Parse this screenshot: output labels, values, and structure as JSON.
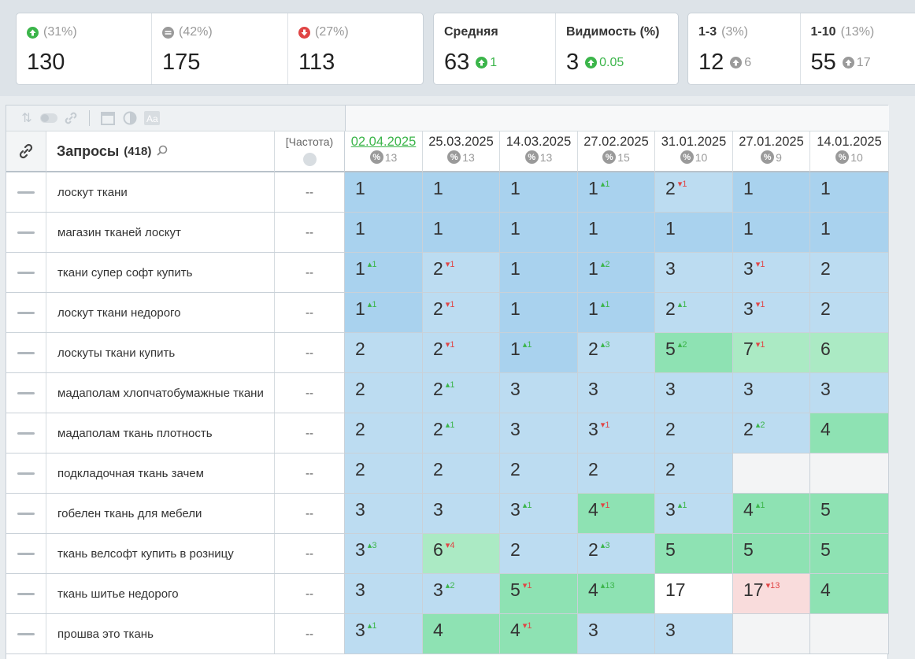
{
  "stats": {
    "card1": [
      {
        "icon": "up-green",
        "percent": "(31%)",
        "value": "130"
      },
      {
        "icon": "equal",
        "percent": "(42%)",
        "value": "175"
      },
      {
        "icon": "down-red",
        "percent": "(27%)",
        "value": "113"
      }
    ],
    "card2": [
      {
        "label": "Средняя",
        "value": "63",
        "delta": "1"
      },
      {
        "label": "Видимость (%)",
        "value": "3",
        "delta": "0.05"
      }
    ],
    "card3": [
      {
        "label": "1-3",
        "percent": "(3%)",
        "value": "12",
        "delta": "6"
      },
      {
        "label": "1-10",
        "percent": "(13%)",
        "value": "55",
        "delta": "17"
      }
    ]
  },
  "table": {
    "header": {
      "queries_label": "Запросы",
      "queries_count": "(418)",
      "frequency_label": "[Частота)"
    },
    "dates": [
      {
        "date": "02.04.2025",
        "pct": "13",
        "active": true
      },
      {
        "date": "25.03.2025",
        "pct": "13"
      },
      {
        "date": "14.03.2025",
        "pct": "13"
      },
      {
        "date": "27.02.2025",
        "pct": "15"
      },
      {
        "date": "31.01.2025",
        "pct": "10"
      },
      {
        "date": "27.01.2025",
        "pct": "9"
      },
      {
        "date": "14.01.2025",
        "pct": "10"
      }
    ],
    "rows": [
      {
        "query": "лоскут ткани",
        "freq": "--",
        "cells": [
          {
            "v": "1",
            "bg": "b1"
          },
          {
            "v": "1",
            "bg": "b1"
          },
          {
            "v": "1",
            "bg": "b1"
          },
          {
            "v": "1",
            "ch": "1",
            "dir": "up",
            "bg": "b1"
          },
          {
            "v": "2",
            "ch": "1",
            "dir": "down",
            "bg": "b2"
          },
          {
            "v": "1",
            "bg": "b1"
          },
          {
            "v": "1",
            "bg": "b1"
          }
        ]
      },
      {
        "query": "магазин тканей лоскут",
        "freq": "--",
        "cells": [
          {
            "v": "1",
            "bg": "b1"
          },
          {
            "v": "1",
            "bg": "b1"
          },
          {
            "v": "1",
            "bg": "b1"
          },
          {
            "v": "1",
            "bg": "b1"
          },
          {
            "v": "1",
            "bg": "b1"
          },
          {
            "v": "1",
            "bg": "b1"
          },
          {
            "v": "1",
            "bg": "b1"
          }
        ]
      },
      {
        "query": "ткани супер софт купить",
        "freq": "--",
        "cells": [
          {
            "v": "1",
            "ch": "1",
            "dir": "up",
            "bg": "b1"
          },
          {
            "v": "2",
            "ch": "1",
            "dir": "down",
            "bg": "b2"
          },
          {
            "v": "1",
            "bg": "b1"
          },
          {
            "v": "1",
            "ch": "2",
            "dir": "up",
            "bg": "b1"
          },
          {
            "v": "3",
            "bg": "b2"
          },
          {
            "v": "3",
            "ch": "1",
            "dir": "down",
            "bg": "b2"
          },
          {
            "v": "2",
            "bg": "b2"
          }
        ]
      },
      {
        "query": "лоскут ткани недорого",
        "freq": "--",
        "cells": [
          {
            "v": "1",
            "ch": "1",
            "dir": "up",
            "bg": "b1"
          },
          {
            "v": "2",
            "ch": "1",
            "dir": "down",
            "bg": "b2"
          },
          {
            "v": "1",
            "bg": "b1"
          },
          {
            "v": "1",
            "ch": "1",
            "dir": "up",
            "bg": "b1"
          },
          {
            "v": "2",
            "ch": "1",
            "dir": "up",
            "bg": "b2"
          },
          {
            "v": "3",
            "ch": "1",
            "dir": "down",
            "bg": "b2"
          },
          {
            "v": "2",
            "bg": "b2"
          }
        ]
      },
      {
        "query": "лоскуты ткани купить",
        "freq": "--",
        "cells": [
          {
            "v": "2",
            "bg": "b2"
          },
          {
            "v": "2",
            "ch": "1",
            "dir": "down",
            "bg": "b2"
          },
          {
            "v": "1",
            "ch": "1",
            "dir": "up",
            "bg": "b1"
          },
          {
            "v": "2",
            "ch": "3",
            "dir": "up",
            "bg": "b2"
          },
          {
            "v": "5",
            "ch": "2",
            "dir": "up",
            "bg": "g1"
          },
          {
            "v": "7",
            "ch": "1",
            "dir": "down",
            "bg": "g2"
          },
          {
            "v": "6",
            "bg": "g2"
          }
        ]
      },
      {
        "query": "мадаполам хлопчатобумажные ткани",
        "freq": "--",
        "cells": [
          {
            "v": "2",
            "bg": "b2"
          },
          {
            "v": "2",
            "ch": "1",
            "dir": "up",
            "bg": "b2"
          },
          {
            "v": "3",
            "bg": "b2"
          },
          {
            "v": "3",
            "bg": "b2"
          },
          {
            "v": "3",
            "bg": "b2"
          },
          {
            "v": "3",
            "bg": "b2"
          },
          {
            "v": "3",
            "bg": "b2"
          }
        ]
      },
      {
        "query": "мадаполам ткань плотность",
        "freq": "--",
        "cells": [
          {
            "v": "2",
            "bg": "b2"
          },
          {
            "v": "2",
            "ch": "1",
            "dir": "up",
            "bg": "b2"
          },
          {
            "v": "3",
            "bg": "b2"
          },
          {
            "v": "3",
            "ch": "1",
            "dir": "down",
            "bg": "b2"
          },
          {
            "v": "2",
            "bg": "b2"
          },
          {
            "v": "2",
            "ch": "2",
            "dir": "up",
            "bg": "b2"
          },
          {
            "v": "4",
            "bg": "g1"
          }
        ]
      },
      {
        "query": "подкладочная ткань зачем",
        "freq": "--",
        "cells": [
          {
            "v": "2",
            "bg": "b2"
          },
          {
            "v": "2",
            "bg": "b2"
          },
          {
            "v": "2",
            "bg": "b2"
          },
          {
            "v": "2",
            "bg": "b2"
          },
          {
            "v": "2",
            "bg": "b2"
          },
          {
            "v": "",
            "bg": "e"
          },
          {
            "v": "",
            "bg": "e"
          }
        ]
      },
      {
        "query": "гобелен ткань для мебели",
        "freq": "--",
        "cells": [
          {
            "v": "3",
            "bg": "b2"
          },
          {
            "v": "3",
            "bg": "b2"
          },
          {
            "v": "3",
            "ch": "1",
            "dir": "up",
            "bg": "b2"
          },
          {
            "v": "4",
            "ch": "1",
            "dir": "down",
            "bg": "g1"
          },
          {
            "v": "3",
            "ch": "1",
            "dir": "up",
            "bg": "b2"
          },
          {
            "v": "4",
            "ch": "1",
            "dir": "up",
            "bg": "g1"
          },
          {
            "v": "5",
            "bg": "g1"
          }
        ]
      },
      {
        "query": "ткань велсофт купить в розницу",
        "freq": "--",
        "cells": [
          {
            "v": "3",
            "ch": "3",
            "dir": "up",
            "bg": "b2"
          },
          {
            "v": "6",
            "ch": "4",
            "dir": "down",
            "bg": "g2"
          },
          {
            "v": "2",
            "bg": "b2"
          },
          {
            "v": "2",
            "ch": "3",
            "dir": "up",
            "bg": "b2"
          },
          {
            "v": "5",
            "bg": "g1"
          },
          {
            "v": "5",
            "bg": "g1"
          },
          {
            "v": "5",
            "bg": "g1"
          }
        ]
      },
      {
        "query": "ткань шитье недорого",
        "freq": "--",
        "cells": [
          {
            "v": "3",
            "bg": "b2"
          },
          {
            "v": "3",
            "ch": "2",
            "dir": "up",
            "bg": "b2"
          },
          {
            "v": "5",
            "ch": "1",
            "dir": "down",
            "bg": "g1"
          },
          {
            "v": "4",
            "ch": "13",
            "dir": "up",
            "bg": "g1"
          },
          {
            "v": "17",
            "bg": "w"
          },
          {
            "v": "17",
            "ch": "13",
            "dir": "down",
            "bg": "r"
          },
          {
            "v": "4",
            "bg": "g1"
          }
        ]
      },
      {
        "query": "прошва это ткань",
        "freq": "--",
        "cells": [
          {
            "v": "3",
            "ch": "1",
            "dir": "up",
            "bg": "b2"
          },
          {
            "v": "4",
            "bg": "g1"
          },
          {
            "v": "4",
            "ch": "1",
            "dir": "down",
            "bg": "g1"
          },
          {
            "v": "3",
            "bg": "b2"
          },
          {
            "v": "3",
            "bg": "b2"
          },
          {
            "v": "",
            "bg": "e"
          },
          {
            "v": "",
            "bg": "e"
          }
        ]
      }
    ]
  }
}
